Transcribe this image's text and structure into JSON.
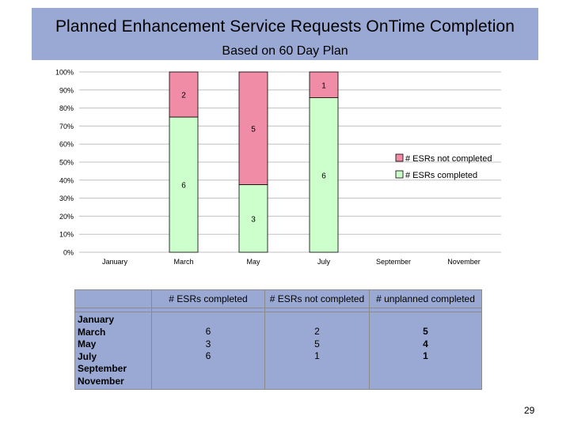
{
  "page": {
    "number": "29"
  },
  "colors": {
    "band": "#99a9d4",
    "not_completed": "#f08ca6",
    "completed": "#ccffcc",
    "grid": "#c0c0c0"
  },
  "chart_data": {
    "type": "bar",
    "stacked": true,
    "title": "Planned Enhancement Service Requests OnTime Completion",
    "subtitle": "Based on 60 Day Plan",
    "categories": [
      "January",
      "March",
      "May",
      "July",
      "September",
      "November"
    ],
    "yticks": [
      "0%",
      "10%",
      "20%",
      "30%",
      "40%",
      "50%",
      "60%",
      "70%",
      "80%",
      "90%",
      "100%"
    ],
    "ylim": [
      0,
      100
    ],
    "grid": true,
    "legend_position": "right",
    "series": [
      {
        "name": "# ESRs completed",
        "color": "#ccffcc",
        "values": [
          null,
          6,
          3,
          6,
          null,
          null
        ]
      },
      {
        "name": "# ESRs not completed",
        "color": "#f08ca6",
        "values": [
          null,
          2,
          5,
          1,
          null,
          null
        ]
      }
    ]
  },
  "table": {
    "headers": [
      "# ESRs completed",
      "# ESRs not completed",
      "# unplanned completed"
    ],
    "months": [
      "January",
      "March",
      "May",
      "July",
      "September",
      "November"
    ],
    "completed": [
      "6",
      "3",
      "6"
    ],
    "not_completed": [
      "2",
      "5",
      "1"
    ],
    "unplanned": [
      "5",
      "4",
      "1"
    ]
  }
}
